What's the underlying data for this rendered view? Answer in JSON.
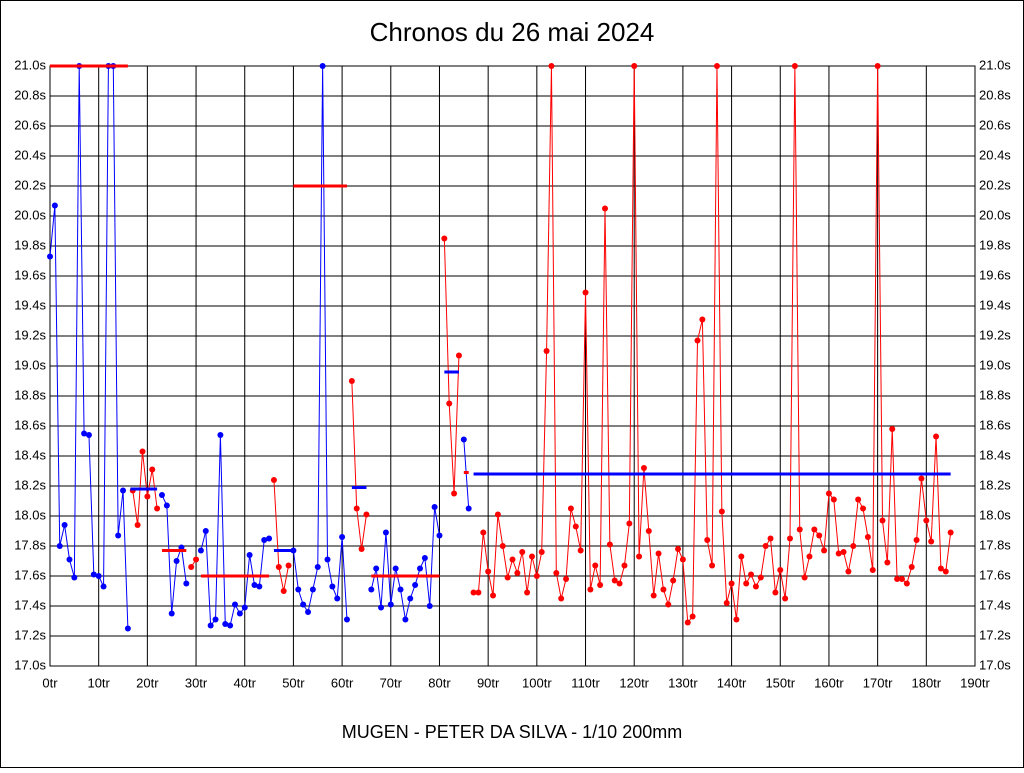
{
  "chart_data": {
    "type": "line",
    "title": "Chronos du 26 mai 2024",
    "x_label": "MUGEN - PETER DA SILVA - 1/10 200mm",
    "xlim": [
      0,
      190
    ],
    "xticks": [
      {
        "value": 0,
        "label": "0tr"
      },
      {
        "value": 10,
        "label": "10tr"
      },
      {
        "value": 20,
        "label": "20tr"
      },
      {
        "value": 30,
        "label": "30tr"
      },
      {
        "value": 40,
        "label": "40tr"
      },
      {
        "value": 50,
        "label": "50tr"
      },
      {
        "value": 60,
        "label": "60tr"
      },
      {
        "value": 70,
        "label": "70tr"
      },
      {
        "value": 80,
        "label": "80tr"
      },
      {
        "value": 90,
        "label": "90tr"
      },
      {
        "value": 100,
        "label": "100tr"
      },
      {
        "value": 110,
        "label": "110tr"
      },
      {
        "value": 120,
        "label": "120tr"
      },
      {
        "value": 130,
        "label": "130tr"
      },
      {
        "value": 140,
        "label": "140tr"
      },
      {
        "value": 150,
        "label": "150tr"
      },
      {
        "value": 160,
        "label": "160tr"
      },
      {
        "value": 170,
        "label": "170tr"
      },
      {
        "value": 180,
        "label": "180tr"
      },
      {
        "value": 190,
        "label": "190tr"
      }
    ],
    "ylim": [
      17.0,
      21.0
    ],
    "yticks": [
      {
        "value": 17.0,
        "label": "17.0s"
      },
      {
        "value": 17.2,
        "label": "17.2s"
      },
      {
        "value": 17.4,
        "label": "17.4s"
      },
      {
        "value": 17.6,
        "label": "17.6s"
      },
      {
        "value": 17.8,
        "label": "17.8s"
      },
      {
        "value": 18.0,
        "label": "18.0s"
      },
      {
        "value": 18.2,
        "label": "18.2s"
      },
      {
        "value": 18.4,
        "label": "18.4s"
      },
      {
        "value": 18.6,
        "label": "18.6s"
      },
      {
        "value": 18.8,
        "label": "18.8s"
      },
      {
        "value": 19.0,
        "label": "19.0s"
      },
      {
        "value": 19.2,
        "label": "19.2s"
      },
      {
        "value": 19.4,
        "label": "19.4s"
      },
      {
        "value": 19.6,
        "label": "19.6s"
      },
      {
        "value": 19.8,
        "label": "19.8s"
      },
      {
        "value": 20.0,
        "label": "20.0s"
      },
      {
        "value": 20.2,
        "label": "20.2s"
      },
      {
        "value": 20.4,
        "label": "20.4s"
      },
      {
        "value": 20.6,
        "label": "20.6s"
      },
      {
        "value": 20.8,
        "label": "20.8s"
      },
      {
        "value": 21.0,
        "label": "21.0s"
      }
    ],
    "grid": true,
    "series": [
      {
        "color": "#0000ff",
        "x": [
          0,
          1,
          2,
          3,
          4,
          5,
          6,
          7,
          8,
          9,
          10,
          11,
          12,
          13,
          14,
          15,
          16
        ],
        "values": [
          19.73,
          20.07,
          17.8,
          17.94,
          17.71,
          17.59,
          21.0,
          18.55,
          18.54,
          17.61,
          17.6,
          17.53,
          21.0,
          21.0,
          17.87,
          18.17,
          17.25
        ]
      },
      {
        "color": "#ff0000",
        "x": [
          17,
          18,
          19,
          20,
          21,
          22
        ],
        "values": [
          18.17,
          17.94,
          18.43,
          18.13,
          18.31,
          18.05
        ]
      },
      {
        "color": "#0000ff",
        "x": [
          23,
          24,
          25,
          26,
          27,
          28
        ],
        "values": [
          18.14,
          18.07,
          17.35,
          17.7,
          17.79,
          17.55
        ]
      },
      {
        "color": "#ff0000",
        "x": [
          29,
          30
        ],
        "values": [
          17.66,
          17.71
        ]
      },
      {
        "color": "#0000ff",
        "x": [
          31,
          32,
          33,
          34,
          35,
          36,
          37,
          38,
          39,
          40,
          41,
          42,
          43,
          44,
          45
        ],
        "values": [
          17.77,
          17.9,
          17.27,
          17.31,
          18.54,
          17.28,
          17.27,
          17.41,
          17.35,
          17.39,
          17.74,
          17.54,
          17.53,
          17.84,
          17.85
        ]
      },
      {
        "color": "#ff0000",
        "x": [
          46,
          47,
          48,
          49
        ],
        "values": [
          18.24,
          17.66,
          17.5,
          17.67
        ]
      },
      {
        "color": "#0000ff",
        "x": [
          50,
          51,
          52,
          53,
          54,
          55,
          56,
          57,
          58,
          59,
          60,
          61
        ],
        "values": [
          17.77,
          17.51,
          17.41,
          17.36,
          17.51,
          17.66,
          21.0,
          17.71,
          17.53,
          17.45,
          17.86,
          17.31
        ]
      },
      {
        "color": "#ff0000",
        "x": [
          62,
          63,
          64,
          65
        ],
        "values": [
          18.9,
          18.05,
          17.78,
          18.01
        ]
      },
      {
        "color": "#0000ff",
        "x": [
          66,
          67,
          68,
          69,
          70,
          71,
          72,
          73,
          74,
          75,
          76,
          77,
          78,
          79,
          80
        ],
        "values": [
          17.51,
          17.65,
          17.39,
          17.89,
          17.41,
          17.65,
          17.51,
          17.31,
          17.45,
          17.54,
          17.65,
          17.72,
          17.4,
          18.06,
          17.87
        ]
      },
      {
        "color": "#ff0000",
        "x": [
          81,
          82,
          83,
          84
        ],
        "values": [
          19.85,
          18.75,
          18.15,
          19.07
        ]
      },
      {
        "color": "#0000ff",
        "x": [
          85,
          86
        ],
        "values": [
          18.51,
          18.05
        ]
      },
      {
        "color": "#ff0000",
        "x": [
          87,
          88,
          89,
          90,
          91,
          92,
          93,
          94,
          95,
          96,
          97,
          98,
          99,
          100,
          101,
          102,
          103,
          104,
          105,
          106,
          107,
          108,
          109,
          110,
          111,
          112,
          113,
          114,
          115,
          116,
          117,
          118,
          119,
          120,
          121,
          122,
          123,
          124,
          125,
          126,
          127,
          128,
          129,
          130,
          131,
          132,
          133,
          134,
          135,
          136,
          137,
          138,
          139,
          140,
          141,
          142,
          143,
          144,
          145,
          146,
          147,
          148,
          149,
          150,
          151,
          152,
          153,
          154,
          155,
          156,
          157,
          158,
          159,
          160,
          161,
          162,
          163,
          164,
          165,
          166,
          167,
          168,
          169,
          170,
          171,
          172,
          173,
          174,
          175,
          176,
          177,
          178,
          179,
          180,
          181,
          182,
          183,
          184,
          185
        ],
        "values": [
          17.49,
          17.49,
          17.89,
          17.63,
          17.47,
          18.01,
          17.8,
          17.59,
          17.71,
          17.62,
          17.76,
          17.49,
          17.73,
          17.6,
          17.76,
          19.1,
          21.0,
          17.62,
          17.45,
          17.58,
          18.05,
          17.93,
          17.77,
          19.49,
          17.51,
          17.67,
          17.54,
          20.05,
          17.81,
          17.57,
          17.55,
          17.67,
          17.95,
          21.0,
          17.73,
          18.32,
          17.9,
          17.47,
          17.75,
          17.51,
          17.41,
          17.57,
          17.78,
          17.71,
          17.29,
          17.33,
          19.17,
          19.31,
          17.84,
          17.67,
          21.0,
          18.03,
          17.42,
          17.55,
          17.31,
          17.73,
          17.55,
          17.61,
          17.53,
          17.59,
          17.8,
          17.85,
          17.49,
          17.64,
          17.45,
          17.85,
          21.0,
          17.91,
          17.59,
          17.73,
          17.91,
          17.87,
          17.77,
          18.15,
          18.11,
          17.75,
          17.76,
          17.63,
          17.8,
          18.11,
          18.05,
          17.86,
          17.64,
          21.0,
          17.97,
          17.69,
          18.58,
          17.58,
          17.58,
          17.55,
          17.66,
          17.84,
          18.25,
          17.97,
          17.83,
          18.53,
          17.65,
          17.63,
          17.89
        ]
      }
    ],
    "averages": [
      {
        "color": "#ff0000",
        "x": [
          0,
          16
        ],
        "value": 21.0
      },
      {
        "color": "#0000ff",
        "x": [
          16.5,
          22
        ],
        "value": 18.18
      },
      {
        "color": "#ff0000",
        "x": [
          23,
          28
        ],
        "value": 17.77
      },
      {
        "color": "#ff0000",
        "x": [
          31,
          45
        ],
        "value": 17.6
      },
      {
        "color": "#0000ff",
        "x": [
          46,
          49.5
        ],
        "value": 17.77
      },
      {
        "color": "#ff0000",
        "x": [
          50,
          61
        ],
        "value": 20.2
      },
      {
        "color": "#0000ff",
        "x": [
          62,
          65
        ],
        "value": 18.19
      },
      {
        "color": "#ff0000",
        "x": [
          66,
          80
        ],
        "value": 17.6
      },
      {
        "color": "#0000ff",
        "x": [
          81,
          84
        ],
        "value": 18.96
      },
      {
        "color": "#ff0000",
        "x": [
          85,
          86
        ],
        "value": 18.29
      },
      {
        "color": "#0000ff",
        "x": [
          87,
          185
        ],
        "value": 18.28
      }
    ]
  }
}
